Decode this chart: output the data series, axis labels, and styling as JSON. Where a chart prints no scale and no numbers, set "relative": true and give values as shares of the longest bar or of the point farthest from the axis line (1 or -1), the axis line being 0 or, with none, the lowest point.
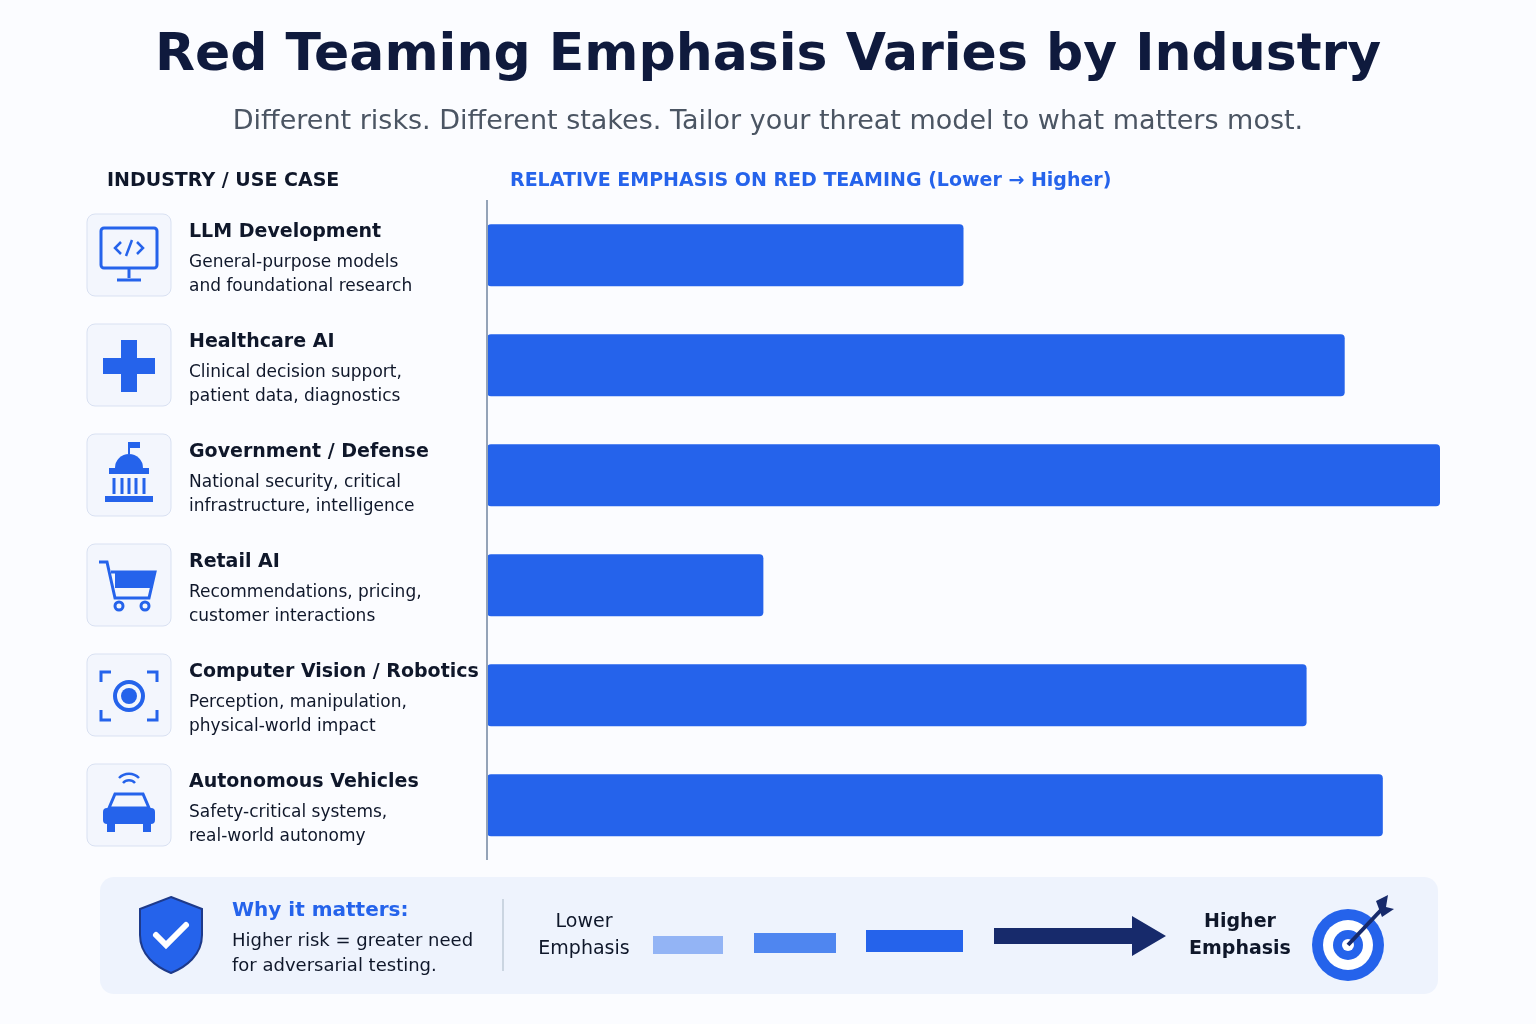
{
  "chart_data": {
    "type": "bar",
    "orientation": "horizontal",
    "relative": true,
    "title": "Red Teaming Emphasis Varies by Industry",
    "subtitle": "Different risks. Different stakes. Tailor your threat model to what matters most.",
    "xlabel": "RELATIVE EMPHASIS ON RED TEAMING (Lower → Higher)",
    "categories": [
      "LLM Development\nGeneral-purpose models\nand foundational research",
      "Healthcare AI\nClinical decision support,\npatient data, diagnostics",
      "Government / Defense\nNational security, critical\ninfrastructure, intelligence",
      "Retail AI\nRecommendations, pricing,\ncustomer interactions",
      "Computer Vision / Robotics\nPerception, manipulation,\nphysical-world impact",
      "Autonomous Vehicles\nSafety-critical systems,\nreal-world autonomy"
    ],
    "values": [
      0.5,
      0.9,
      1,
      0.29,
      0.86,
      0.94
    ],
    "color": "#2563eb",
    "annotations": [
      "INDUSTRY / USE CASE",
      "Why it matters:",
      "Higher risk = greater need\nfor adversarial testing.",
      "Lower\nEmphasis",
      "Higher\nEmphasis"
    ]
  }
}
